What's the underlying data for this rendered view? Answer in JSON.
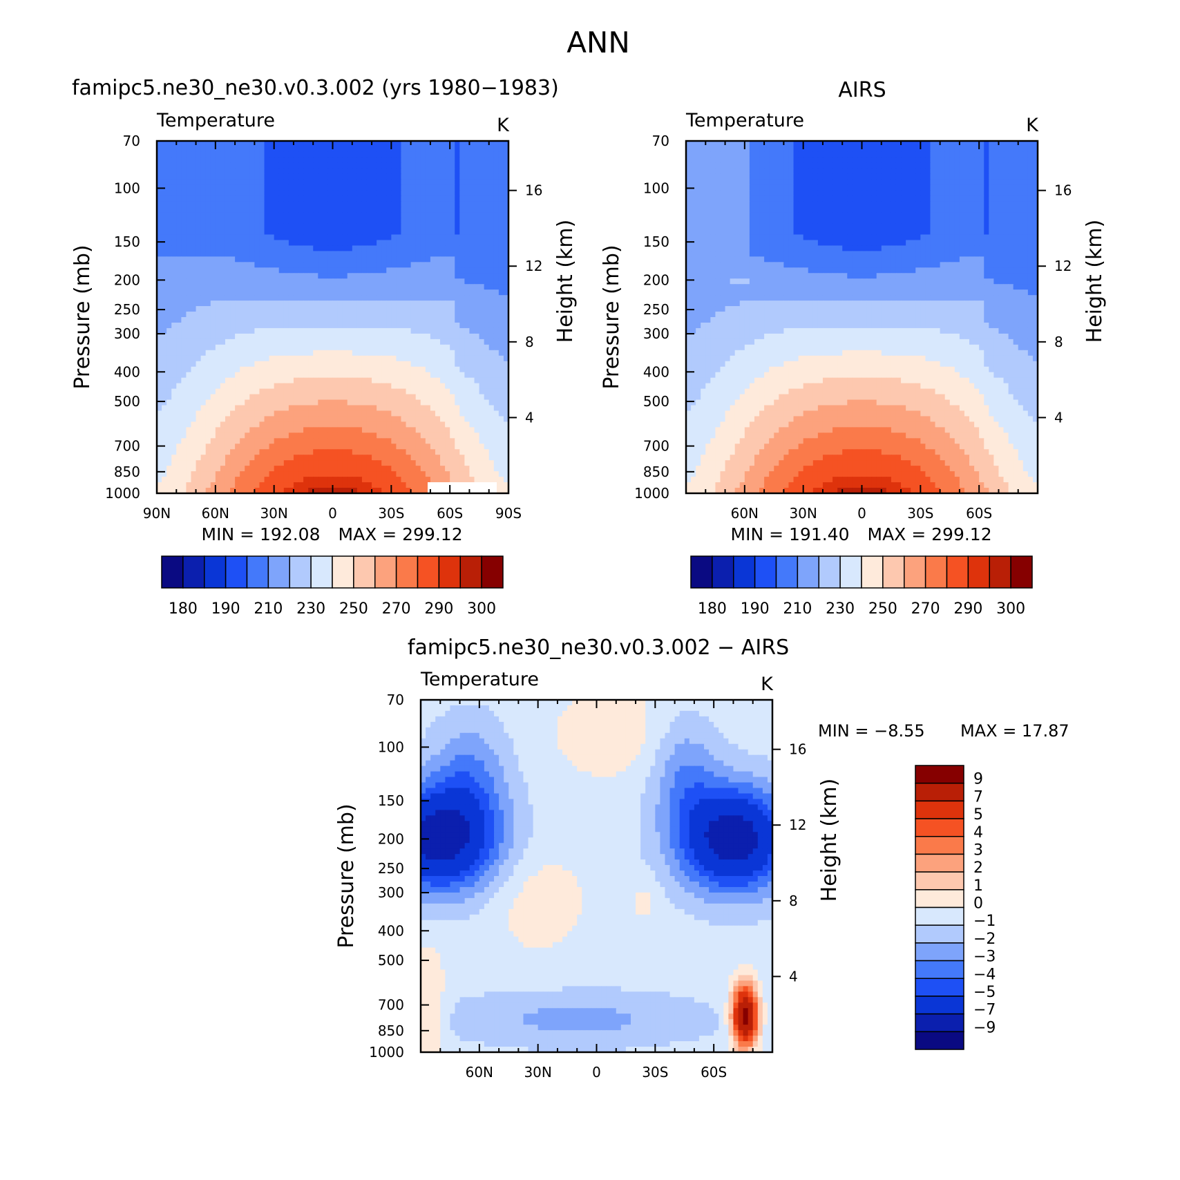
{
  "figure_title": "ANN",
  "chart_data": [
    {
      "type": "heatmap",
      "id": "model",
      "title": "famipc5.ne30_ne30.v0.3.002 (yrs 1980−1983)",
      "subtitle": "Temperature",
      "units": "K",
      "ylabel": "Pressure (mb)",
      "ylabel_right": "Height (km)",
      "x_ticks": [
        "90N",
        "60N",
        "30N",
        "0",
        "30S",
        "60S",
        "90S"
      ],
      "x_range": [
        90,
        -90
      ],
      "y_ticks": [
        70,
        100,
        150,
        200,
        250,
        300,
        400,
        500,
        700,
        850,
        1000
      ],
      "y_range_mb": [
        70,
        1000
      ],
      "height_ticks_km": [
        16,
        12,
        8,
        4
      ],
      "stats": {
        "min_label": "MIN = 192.08",
        "max_label": "MAX = 299.12",
        "min": 192.08,
        "max": 299.12
      },
      "colorbar_labels": [
        "180",
        "190",
        "210",
        "230",
        "250",
        "270",
        "290",
        "300"
      ],
      "contour_levels": [
        180,
        185,
        190,
        200,
        210,
        220,
        230,
        240,
        250,
        260,
        270,
        280,
        290,
        295,
        300
      ]
    },
    {
      "type": "heatmap",
      "id": "obs",
      "title": "AIRS",
      "subtitle": "Temperature",
      "units": "K",
      "ylabel": "Pressure (mb)",
      "ylabel_right": "Height (km)",
      "x_ticks": [
        "60N",
        "30N",
        "0",
        "30S",
        "60S"
      ],
      "x_range": [
        90,
        -90
      ],
      "y_ticks": [
        70,
        100,
        150,
        200,
        250,
        300,
        400,
        500,
        700,
        850,
        1000
      ],
      "y_range_mb": [
        70,
        1000
      ],
      "height_ticks_km": [
        16,
        12,
        8,
        4
      ],
      "stats": {
        "min_label": "MIN = 191.40",
        "max_label": "MAX = 299.12",
        "min": 191.4,
        "max": 299.12
      },
      "colorbar_labels": [
        "180",
        "190",
        "210",
        "230",
        "250",
        "270",
        "290",
        "300"
      ],
      "contour_levels": [
        180,
        185,
        190,
        200,
        210,
        220,
        230,
        240,
        250,
        260,
        270,
        280,
        290,
        295,
        300
      ]
    },
    {
      "type": "heatmap",
      "id": "diff",
      "title": "famipc5.ne30_ne30.v0.3.002 − AIRS",
      "subtitle": "Temperature",
      "units": "K",
      "ylabel": "Pressure (mb)",
      "ylabel_right": "Height (km)",
      "x_ticks": [
        "60N",
        "30N",
        "0",
        "30S",
        "60S"
      ],
      "x_range": [
        90,
        -90
      ],
      "y_ticks": [
        70,
        100,
        150,
        200,
        250,
        300,
        400,
        500,
        700,
        850,
        1000
      ],
      "y_range_mb": [
        70,
        1000
      ],
      "height_ticks_km": [
        16,
        12,
        8,
        4
      ],
      "stats": {
        "min_label": "MIN = −8.55",
        "max_label": "MAX = 17.87",
        "min": -8.55,
        "max": 17.87
      },
      "colorbar_labels": [
        "9",
        "7",
        "5",
        "4",
        "3",
        "2",
        "1",
        "0",
        "−1",
        "−2",
        "−3",
        "−4",
        "−5",
        "−7",
        "−9"
      ],
      "contour_levels": [
        -9,
        -7,
        -5,
        -4,
        -3,
        -2,
        -1,
        0,
        1,
        2,
        3,
        4,
        5,
        7,
        9
      ]
    }
  ],
  "colors": {
    "temp_palette": [
      "#0a0a82",
      "#0b1fae",
      "#0a36d6",
      "#1e50f5",
      "#4479fa",
      "#7ea4fb",
      "#b1cafd",
      "#d8e8fd",
      "#feeadb",
      "#fdc8af",
      "#fca27d",
      "#fa7a4a",
      "#f55223",
      "#de330c",
      "#b91f06",
      "#860000"
    ],
    "diff_palette": [
      "#0a0a82",
      "#0b1fae",
      "#0a36d6",
      "#1e50f5",
      "#4479fa",
      "#7ea4fb",
      "#b1cafd",
      "#d8e8fd",
      "#feeadb",
      "#fdc8af",
      "#fca27d",
      "#fa7a4a",
      "#f55223",
      "#de330c",
      "#b91f06",
      "#860000"
    ]
  }
}
